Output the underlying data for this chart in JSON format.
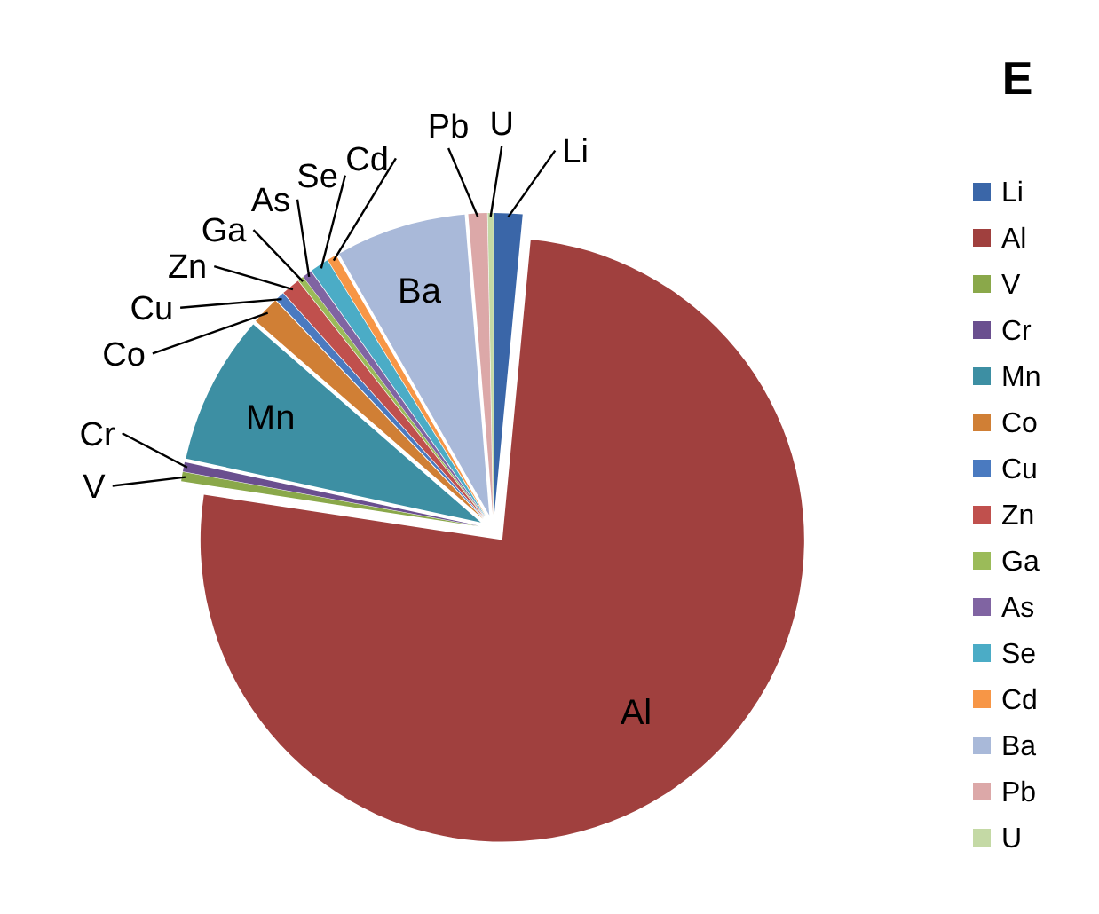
{
  "chart_data": {
    "type": "pie",
    "title": "E",
    "categories": [
      "Li",
      "Al",
      "V",
      "Cr",
      "Mn",
      "Co",
      "Cu",
      "Zn",
      "Ga",
      "As",
      "Se",
      "Cd",
      "Ba",
      "Pb",
      "U"
    ],
    "values": [
      1.5,
      75.9,
      0.5,
      0.5,
      8,
      1.5,
      0.5,
      1,
      0.3,
      0.5,
      1,
      0.5,
      7,
      1,
      0.3
    ],
    "colors": [
      "#3a66a8",
      "#a0403e",
      "#8aa84a",
      "#6a4f8f",
      "#3d8fa3",
      "#d07f35",
      "#4a7ac0",
      "#c0504d",
      "#9bbb59",
      "#8064a2",
      "#4bacc6",
      "#f79646",
      "#a9b9d9",
      "#dca8a8",
      "#c4d9a5"
    ],
    "legend": "right"
  }
}
